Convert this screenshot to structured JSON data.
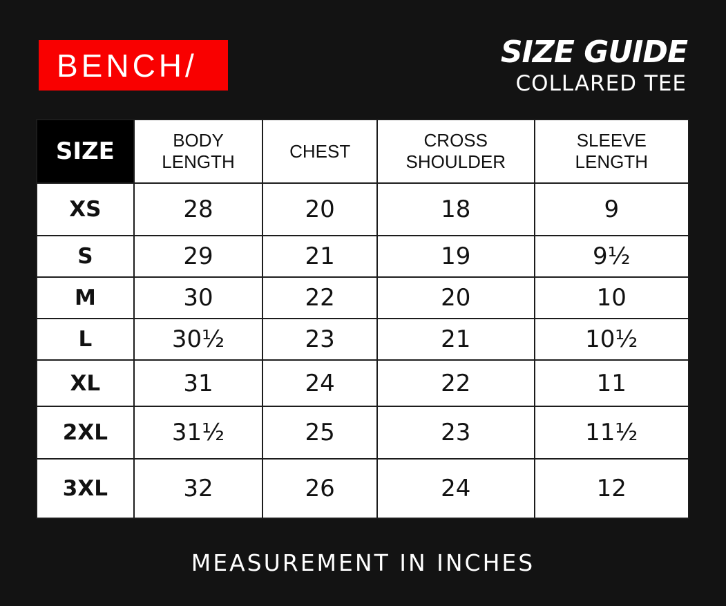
{
  "brand": {
    "logo": "BENCH/",
    "color": "#f90000"
  },
  "title": "SIZE GUIDE",
  "subtitle": "COLLARED TEE",
  "table": {
    "headers": [
      "SIZE",
      "BODY\nLENGTH",
      "CHEST",
      "CROSS\nSHOULDER",
      "SLEEVE\nLENGTH"
    ],
    "rows": [
      [
        "XS",
        "28",
        "20",
        "18",
        "9"
      ],
      [
        "S",
        "29",
        "21",
        "19",
        "9½"
      ],
      [
        "M",
        "30",
        "22",
        "20",
        "10"
      ],
      [
        "L",
        "30½",
        "23",
        "21",
        "10½"
      ],
      [
        "XL",
        "31",
        "24",
        "22",
        "11"
      ],
      [
        "2XL",
        "31½",
        "25",
        "23",
        "11½"
      ],
      [
        "3XL",
        "32",
        "26",
        "24",
        "12"
      ]
    ]
  },
  "footer": "MEASUREMENT IN INCHES"
}
